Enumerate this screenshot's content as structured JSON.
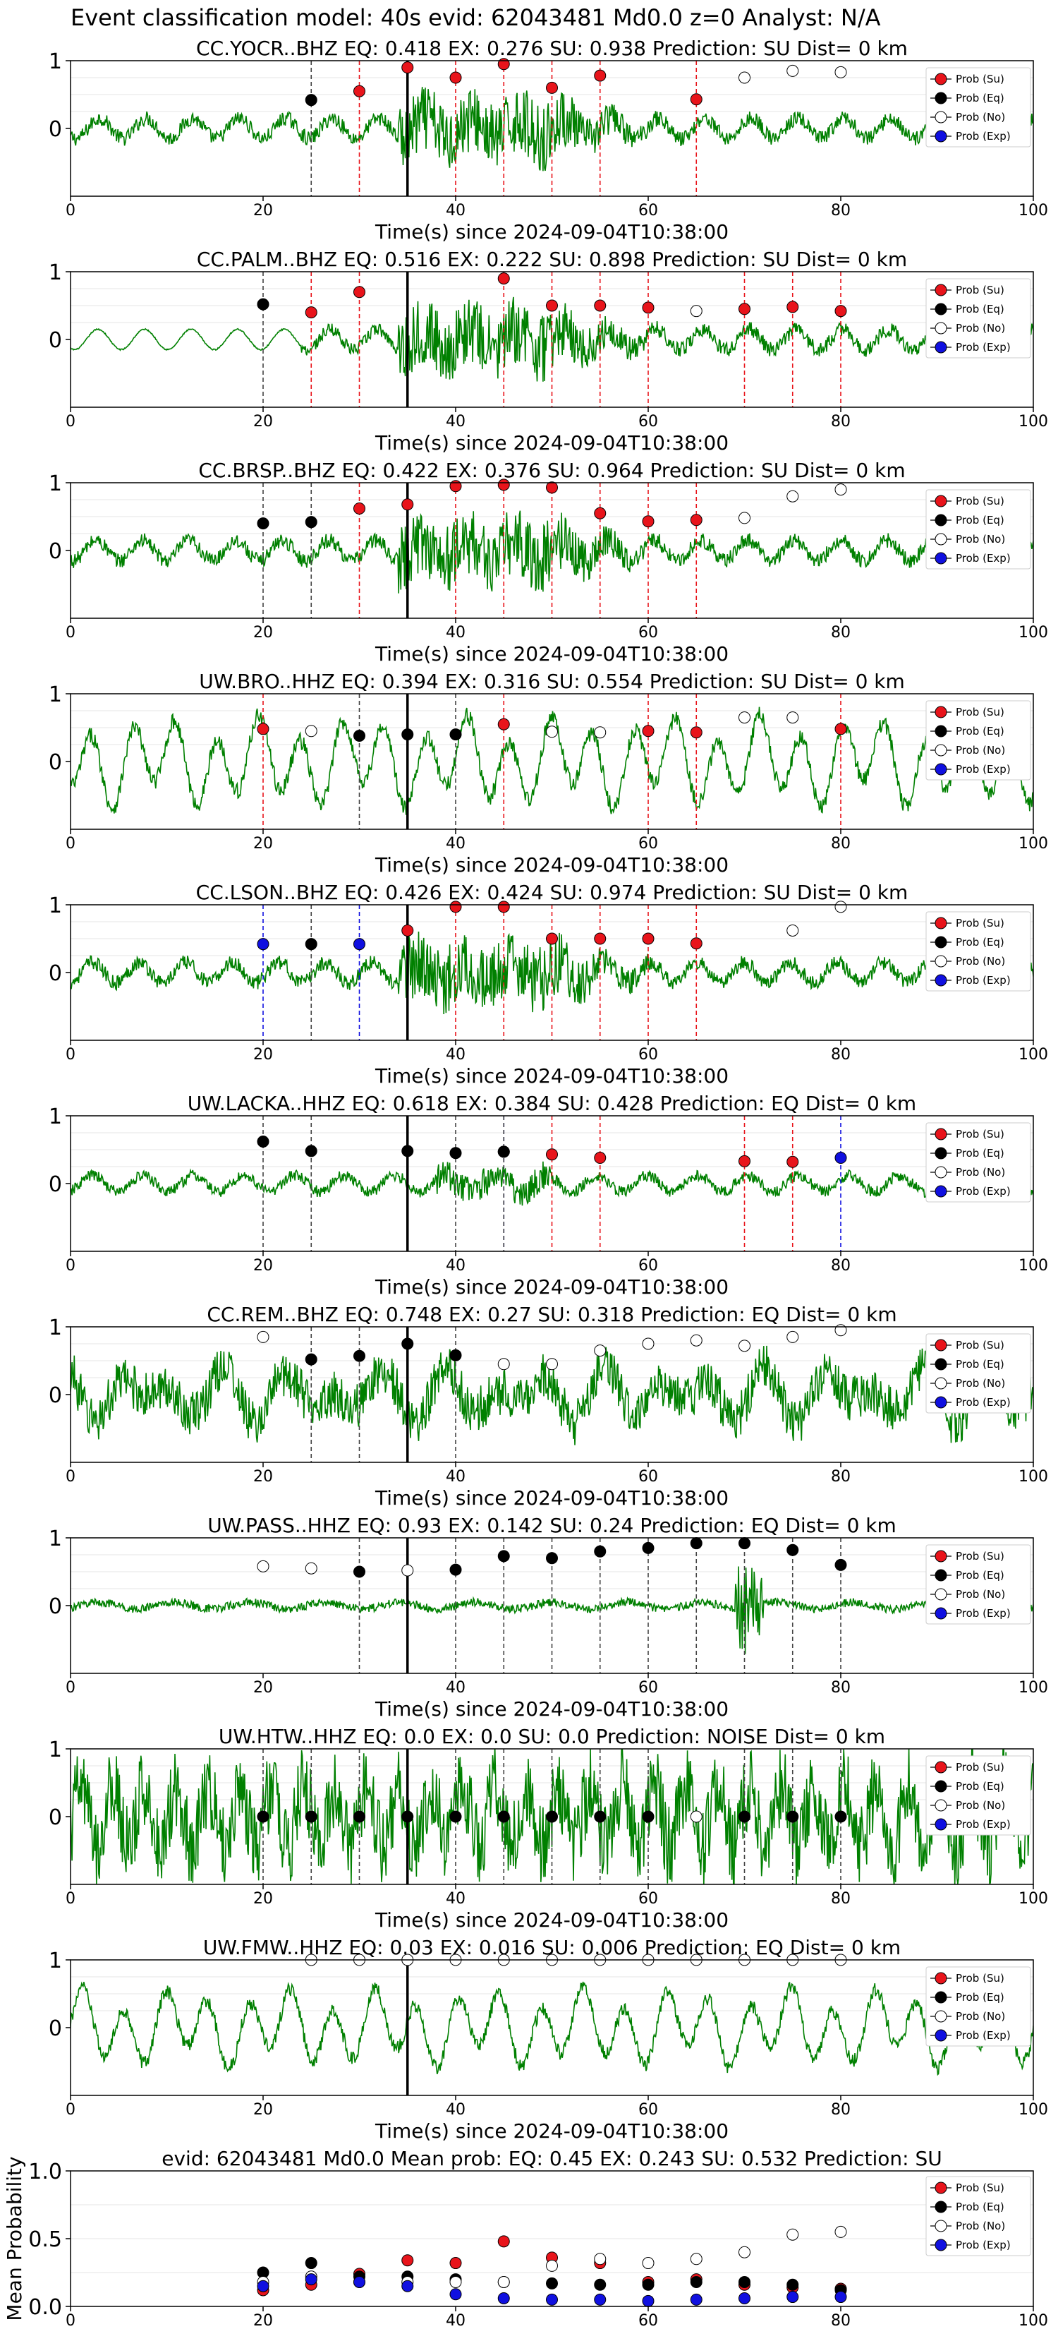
{
  "figure_title": "Event classification model: 40s evid: 62043481 Md0.0 z=0 Analyst: N/A",
  "legend": {
    "labels": [
      "Prob (Su)",
      "Prob (Eq)",
      "Prob (No)",
      "Prob (Exp)"
    ],
    "colors": [
      "#e8141b",
      "#000000",
      "#ffffff",
      "#1010e0"
    ]
  },
  "colors": {
    "trace": "#008000",
    "su": "#e8141b",
    "eq": "#000000",
    "no": "#ffffff",
    "exp": "#1010e0"
  },
  "chart_data": [
    {
      "type": "line",
      "title": "CC.YOCR..BHZ   EQ: 0.418  EX: 0.276  SU: 0.938   Prediction: SU    Dist= 0 km",
      "xlabel": "Time(s) since 2024-09-04T10:38:00",
      "xlim": [
        0,
        100
      ],
      "ylim": [
        -1,
        1
      ],
      "xticks": [
        0,
        20,
        40,
        60,
        80,
        100
      ],
      "yticks": [
        0,
        1
      ],
      "arrival_time": 35,
      "style": "burst",
      "amplitude": 0.45,
      "points": [
        [
          25,
          0.42,
          "eq"
        ],
        [
          30,
          0.55,
          "su"
        ],
        [
          35,
          0.9,
          "su"
        ],
        [
          40,
          0.75,
          "su"
        ],
        [
          45,
          0.95,
          "su"
        ],
        [
          50,
          0.6,
          "su"
        ],
        [
          55,
          0.78,
          "su"
        ],
        [
          65,
          0.43,
          "su"
        ],
        [
          70,
          0.75,
          "no"
        ],
        [
          75,
          0.85,
          "no"
        ],
        [
          80,
          0.83,
          "no"
        ]
      ]
    },
    {
      "type": "line",
      "title": "CC.PALM..BHZ   EQ: 0.516  EX: 0.222  SU: 0.898   Prediction: SU    Dist= 0 km",
      "xlabel": "Time(s) since 2024-09-04T10:38:00",
      "xlim": [
        0,
        100
      ],
      "ylim": [
        -1,
        1
      ],
      "xticks": [
        0,
        20,
        40,
        60,
        80,
        100
      ],
      "yticks": [
        0,
        1
      ],
      "arrival_time": 35,
      "style": "burst_quiet",
      "amplitude": 0.45,
      "points": [
        [
          20,
          0.52,
          "eq"
        ],
        [
          25,
          0.4,
          "su"
        ],
        [
          30,
          0.7,
          "su"
        ],
        [
          45,
          0.9,
          "su"
        ],
        [
          50,
          0.5,
          "su"
        ],
        [
          55,
          0.5,
          "su"
        ],
        [
          60,
          0.47,
          "su"
        ],
        [
          65,
          0.42,
          "no"
        ],
        [
          70,
          0.45,
          "su"
        ],
        [
          75,
          0.48,
          "su"
        ],
        [
          80,
          0.42,
          "su"
        ]
      ]
    },
    {
      "type": "line",
      "title": "CC.BRSP..BHZ   EQ: 0.422  EX: 0.376  SU: 0.964   Prediction: SU    Dist= 0 km",
      "xlabel": "Time(s) since 2024-09-04T10:38:00",
      "xlim": [
        0,
        100
      ],
      "ylim": [
        -1,
        1
      ],
      "xticks": [
        0,
        20,
        40,
        60,
        80,
        100
      ],
      "yticks": [
        0,
        1
      ],
      "arrival_time": 35,
      "style": "burst",
      "amplitude": 0.45,
      "points": [
        [
          20,
          0.4,
          "eq"
        ],
        [
          25,
          0.42,
          "eq"
        ],
        [
          30,
          0.62,
          "su"
        ],
        [
          35,
          0.68,
          "su"
        ],
        [
          40,
          0.95,
          "su"
        ],
        [
          45,
          0.97,
          "su"
        ],
        [
          50,
          0.93,
          "su"
        ],
        [
          55,
          0.55,
          "su"
        ],
        [
          60,
          0.43,
          "su"
        ],
        [
          65,
          0.45,
          "su"
        ],
        [
          70,
          0.48,
          "no"
        ],
        [
          75,
          0.8,
          "no"
        ],
        [
          80,
          0.9,
          "no"
        ]
      ]
    },
    {
      "type": "line",
      "title": "UW.BRO..HHZ   EQ: 0.394  EX: 0.316  SU: 0.554   Prediction: SU    Dist= 0 km",
      "xlabel": "Time(s) since 2024-09-04T10:38:00",
      "xlim": [
        0,
        100
      ],
      "ylim": [
        -1,
        1
      ],
      "xticks": [
        0,
        20,
        40,
        60,
        80,
        100
      ],
      "yticks": [
        0,
        1
      ],
      "arrival_time": 35,
      "style": "wave",
      "amplitude": 0.7,
      "points": [
        [
          20,
          0.48,
          "su"
        ],
        [
          25,
          0.45,
          "no"
        ],
        [
          30,
          0.38,
          "eq"
        ],
        [
          35,
          0.4,
          "eq"
        ],
        [
          40,
          0.4,
          "eq"
        ],
        [
          45,
          0.55,
          "su"
        ],
        [
          50,
          0.44,
          "no"
        ],
        [
          55,
          0.43,
          "no"
        ],
        [
          60,
          0.45,
          "su"
        ],
        [
          65,
          0.43,
          "su"
        ],
        [
          70,
          0.65,
          "no"
        ],
        [
          75,
          0.65,
          "no"
        ],
        [
          80,
          0.48,
          "su"
        ]
      ]
    },
    {
      "type": "line",
      "title": "CC.LSON..BHZ   EQ: 0.426  EX: 0.424  SU: 0.974   Prediction: SU    Dist= 0 km",
      "xlabel": "Time(s) since 2024-09-04T10:38:00",
      "xlim": [
        0,
        100
      ],
      "ylim": [
        -1,
        1
      ],
      "xticks": [
        0,
        20,
        40,
        60,
        80,
        100
      ],
      "yticks": [
        0,
        1
      ],
      "arrival_time": 35,
      "style": "burst",
      "amplitude": 0.45,
      "points": [
        [
          20,
          0.42,
          "exp"
        ],
        [
          25,
          0.42,
          "eq"
        ],
        [
          30,
          0.42,
          "exp"
        ],
        [
          35,
          0.62,
          "su"
        ],
        [
          40,
          0.97,
          "su"
        ],
        [
          45,
          0.97,
          "su"
        ],
        [
          50,
          0.5,
          "su"
        ],
        [
          55,
          0.5,
          "su"
        ],
        [
          60,
          0.5,
          "su"
        ],
        [
          65,
          0.43,
          "su"
        ],
        [
          75,
          0.62,
          "no"
        ],
        [
          80,
          0.97,
          "no"
        ]
      ]
    },
    {
      "type": "line",
      "title": "UW.LACKA..HHZ   EQ: 0.618  EX: 0.384  SU: 0.428   Prediction: EQ    Dist= 0 km",
      "xlabel": "Time(s) since 2024-09-04T10:38:00",
      "xlim": [
        0,
        100
      ],
      "ylim": [
        -1,
        1
      ],
      "xticks": [
        0,
        20,
        40,
        60,
        80,
        100
      ],
      "yticks": [
        0,
        1
      ],
      "arrival_time": 35,
      "style": "mild_burst",
      "amplitude": 0.3,
      "points": [
        [
          20,
          0.62,
          "eq"
        ],
        [
          25,
          0.48,
          "eq"
        ],
        [
          35,
          0.48,
          "eq"
        ],
        [
          40,
          0.45,
          "eq"
        ],
        [
          45,
          0.47,
          "exp"
        ],
        [
          45,
          0.47,
          "eq"
        ],
        [
          50,
          0.43,
          "su"
        ],
        [
          55,
          0.38,
          "su"
        ],
        [
          70,
          0.33,
          "su"
        ],
        [
          75,
          0.32,
          "su"
        ],
        [
          80,
          0.38,
          "exp"
        ]
      ]
    },
    {
      "type": "line",
      "title": "CC.REM..BHZ   EQ: 0.748  EX: 0.27  SU: 0.318   Prediction: EQ    Dist= 0 km",
      "xlabel": "Time(s) since 2024-09-04T10:38:00",
      "xlim": [
        0,
        100
      ],
      "ylim": [
        -1,
        1
      ],
      "xticks": [
        0,
        20,
        40,
        60,
        80,
        100
      ],
      "yticks": [
        0,
        1
      ],
      "arrival_time": 35,
      "style": "noisy",
      "amplitude": 0.75,
      "points": [
        [
          20,
          0.85,
          "no"
        ],
        [
          25,
          0.52,
          "eq"
        ],
        [
          30,
          0.57,
          "eq"
        ],
        [
          35,
          0.75,
          "eq"
        ],
        [
          40,
          0.58,
          "eq"
        ],
        [
          45,
          0.45,
          "no"
        ],
        [
          50,
          0.45,
          "no"
        ],
        [
          55,
          0.65,
          "no"
        ],
        [
          60,
          0.75,
          "no"
        ],
        [
          65,
          0.8,
          "no"
        ],
        [
          70,
          0.72,
          "no"
        ],
        [
          75,
          0.85,
          "no"
        ],
        [
          80,
          0.95,
          "no"
        ]
      ]
    },
    {
      "type": "line",
      "title": "UW.PASS..HHZ   EQ: 0.93  EX: 0.142  SU: 0.24   Prediction: EQ    Dist= 0 km",
      "xlabel": "Time(s) since 2024-09-04T10:38:00",
      "xlim": [
        0,
        100
      ],
      "ylim": [
        -1,
        1
      ],
      "xticks": [
        0,
        20,
        40,
        60,
        80,
        100
      ],
      "yticks": [
        0,
        1
      ],
      "arrival_time": 35,
      "style": "calm",
      "amplitude": 0.12,
      "points": [
        [
          20,
          0.58,
          "no"
        ],
        [
          25,
          0.55,
          "no"
        ],
        [
          30,
          0.5,
          "eq"
        ],
        [
          35,
          0.52,
          "no"
        ],
        [
          40,
          0.53,
          "eq"
        ],
        [
          45,
          0.73,
          "eq"
        ],
        [
          50,
          0.7,
          "eq"
        ],
        [
          55,
          0.8,
          "eq"
        ],
        [
          60,
          0.85,
          "eq"
        ],
        [
          65,
          0.92,
          "eq"
        ],
        [
          70,
          0.92,
          "eq"
        ],
        [
          75,
          0.82,
          "eq"
        ],
        [
          80,
          0.6,
          "eq"
        ]
      ]
    },
    {
      "type": "line",
      "title": "UW.HTW..HHZ   EQ: 0.0  EX: 0.0  SU: 0.0   Prediction: NOISE    Dist= 0 km",
      "xlabel": "Time(s) since 2024-09-04T10:38:00",
      "xlim": [
        0,
        100
      ],
      "ylim": [
        -1,
        1
      ],
      "xticks": [
        0,
        20,
        40,
        60,
        80,
        100
      ],
      "yticks": [
        0,
        1
      ],
      "arrival_time": 35,
      "style": "dense",
      "amplitude": 0.8,
      "points": [
        [
          20,
          0.0,
          "eq"
        ],
        [
          25,
          0.0,
          "eq"
        ],
        [
          30,
          0.0,
          "eq"
        ],
        [
          35,
          0.0,
          "eq"
        ],
        [
          40,
          0.0,
          "eq"
        ],
        [
          45,
          0.0,
          "eq"
        ],
        [
          50,
          0.0,
          "eq"
        ],
        [
          55,
          0.0,
          "eq"
        ],
        [
          60,
          0.0,
          "eq"
        ],
        [
          65,
          0.0,
          "no"
        ],
        [
          70,
          0.0,
          "eq"
        ],
        [
          75,
          0.0,
          "eq"
        ],
        [
          80,
          0.0,
          "eq"
        ]
      ]
    },
    {
      "type": "line",
      "title": "UW.FMW..HHZ   EQ: 0.03  EX: 0.016  SU: 0.006   Prediction: EQ    Dist= 0 km",
      "xlabel": "Time(s) since 2024-09-04T10:38:00",
      "xlim": [
        0,
        100
      ],
      "ylim": [
        -1,
        1
      ],
      "xticks": [
        0,
        20,
        40,
        60,
        80,
        100
      ],
      "yticks": [
        0,
        1
      ],
      "arrival_time": 35,
      "style": "wave",
      "amplitude": 0.6,
      "points": [
        [
          25,
          1.0,
          "no"
        ],
        [
          30,
          1.0,
          "no"
        ],
        [
          35,
          1.0,
          "no"
        ],
        [
          40,
          1.0,
          "no"
        ],
        [
          45,
          1.0,
          "no"
        ],
        [
          50,
          1.0,
          "no"
        ],
        [
          55,
          1.0,
          "no"
        ],
        [
          60,
          1.0,
          "no"
        ],
        [
          65,
          1.0,
          "no"
        ],
        [
          70,
          1.0,
          "no"
        ],
        [
          75,
          1.0,
          "no"
        ],
        [
          80,
          1.0,
          "no"
        ]
      ]
    }
  ],
  "mean_chart": {
    "type": "scatter",
    "title": "evid: 62043481  Md0.0   Mean prob:   EQ: 0.45  EX: 0.243  SU: 0.532   Prediction: SU",
    "ylabel": "Mean Probability",
    "xlim": [
      0,
      100
    ],
    "ylim": [
      0,
      1
    ],
    "xticks": [
      0,
      20,
      40,
      60,
      80,
      100
    ],
    "yticks": [
      0.0,
      0.5,
      1.0
    ],
    "ytick_labels": [
      "0.0",
      "0.5",
      "1.0"
    ],
    "x": [
      20,
      25,
      30,
      35,
      40,
      45,
      50,
      55,
      60,
      65,
      70,
      75,
      80
    ],
    "series": [
      {
        "name": "Prob (Su)",
        "key": "su",
        "values": [
          0.12,
          0.16,
          0.24,
          0.34,
          0.32,
          0.48,
          0.36,
          0.32,
          0.18,
          0.2,
          0.16,
          0.14,
          0.13
        ]
      },
      {
        "name": "Prob (Eq)",
        "key": "eq",
        "values": [
          0.25,
          0.32,
          0.22,
          0.22,
          0.2,
          0.18,
          0.17,
          0.16,
          0.16,
          0.18,
          0.18,
          0.16,
          0.12
        ]
      },
      {
        "name": "Prob (No)",
        "key": "no",
        "values": [
          0.18,
          0.22,
          0.18,
          0.18,
          0.18,
          0.18,
          0.3,
          0.35,
          0.32,
          0.35,
          0.4,
          0.53,
          0.55
        ]
      },
      {
        "name": "Prob (Exp)",
        "key": "exp",
        "values": [
          0.15,
          0.2,
          0.18,
          0.15,
          0.09,
          0.06,
          0.05,
          0.05,
          0.04,
          0.05,
          0.06,
          0.07,
          0.07
        ]
      }
    ]
  }
}
